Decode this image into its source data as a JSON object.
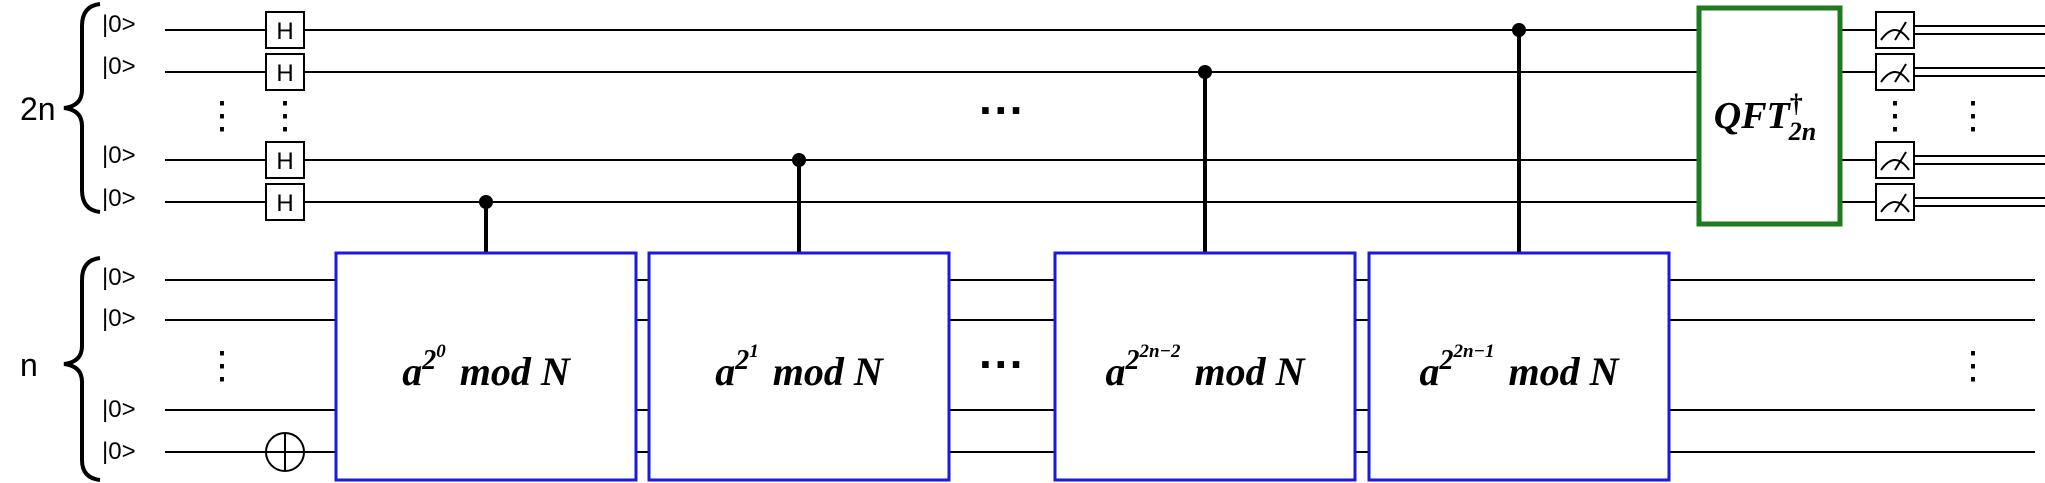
{
  "registers": {
    "top_label": "2n",
    "bottom_label": "n"
  },
  "init_state_label": "|0>",
  "gate_labels": {
    "hadamard": "H"
  },
  "ellipses": {
    "vertical": "⋮",
    "horizontal": "···"
  },
  "mod_gates": [
    {
      "base": "a",
      "exponent": "2",
      "superscript": "0",
      "text": "mod N"
    },
    {
      "base": "a",
      "exponent": "2",
      "superscript": "1",
      "text": "mod N"
    },
    {
      "base": "a",
      "exponent": "2",
      "superscript": "2n−2",
      "text": "mod N"
    },
    {
      "base": "a",
      "exponent": "2",
      "superscript": "2n−1",
      "text": "mod N"
    }
  ],
  "qft_gate": {
    "name": "QFT",
    "dagger": "†",
    "subscript": "2n"
  },
  "colors": {
    "mod_gate_border": "#1a1adb",
    "qft_border": "#1f7a1f",
    "wire": "#000000"
  }
}
